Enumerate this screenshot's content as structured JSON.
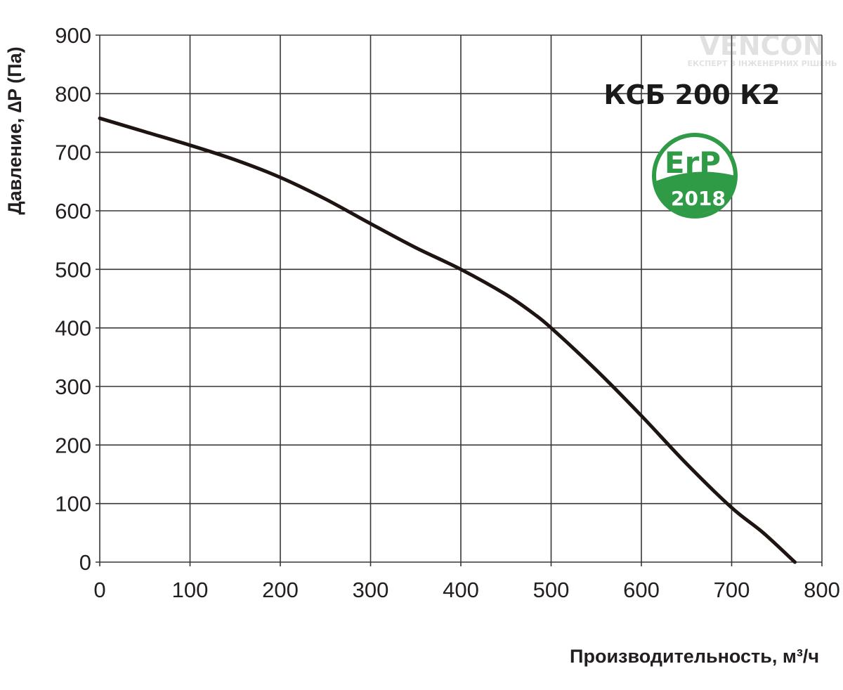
{
  "chart_data": {
    "type": "line",
    "title": "",
    "model_label": "КСБ 200 К2",
    "xlabel": "Производительность,  м³/ч",
    "ylabel": "Давление, ∆P (Па)",
    "xlim": [
      0,
      800
    ],
    "ylim": [
      0,
      900
    ],
    "xticks": [
      "0",
      "100",
      "200",
      "300",
      "400",
      "500",
      "600",
      "700",
      "800"
    ],
    "yticks": [
      "0",
      "100",
      "200",
      "300",
      "400",
      "500",
      "600",
      "700",
      "800",
      "900"
    ],
    "grid": true,
    "legend": "none",
    "series": [
      {
        "color": "#1e1412",
        "points": [
          [
            0,
            758
          ],
          [
            50,
            735
          ],
          [
            100,
            712
          ],
          [
            150,
            687
          ],
          [
            200,
            657
          ],
          [
            250,
            620
          ],
          [
            300,
            578
          ],
          [
            350,
            537
          ],
          [
            400,
            500
          ],
          [
            450,
            457
          ],
          [
            480,
            425
          ],
          [
            500,
            400
          ],
          [
            550,
            328
          ],
          [
            600,
            250
          ],
          [
            650,
            168
          ],
          [
            700,
            93
          ],
          [
            735,
            50
          ],
          [
            770,
            0
          ]
        ]
      }
    ]
  },
  "badge": {
    "top_text": "ErP",
    "bottom_text": "2018",
    "color": "#2f9b46"
  },
  "watermark": {
    "brand": "VENCON",
    "tagline": "ЕКСПЕРТ З ІНЖЕНЕРНИХ РІШЕНЬ"
  }
}
